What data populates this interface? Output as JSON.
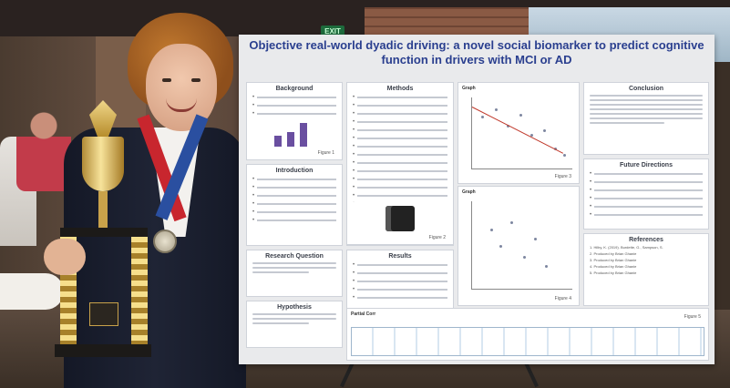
{
  "scene": {
    "exit_sign": "EXIT"
  },
  "poster": {
    "title": "Objective real-world dyadic driving: a novel social biomarker to predict cognitive function in drivers with MCI or AD",
    "sections": {
      "background": "Background",
      "methods": "Methods",
      "conclusion": "Conclusion",
      "introduction": "Introduction",
      "future_directions": "Future Directions",
      "references": "References",
      "research_question": "Research Question",
      "results": "Results",
      "hypothesis": "Hypothesis"
    },
    "figures": {
      "figure1": "Figure 1",
      "figure2": "Figure 2",
      "figure3": "Figure 3",
      "figure4": "Figure 4",
      "figure5": "Figure 5"
    },
    "graphs": {
      "graph_top_title": "Graph",
      "graph_bottom_title": "Graph",
      "bottom_table_title": "Partial Corr"
    },
    "references": [
      "1. Hilby, K. (2019). Burdette, G., Sampson, S.",
      "2. Produced by Brian Ghanie",
      "3. Produced by Brian Ghanie",
      "4. Produced by Brian Ghanie",
      "5. Produced by Brian Ghanie"
    ]
  },
  "colors": {
    "poster_title": "#2a3f8f",
    "bar": "#6a4fa0",
    "ribbon_red": "#c8262e",
    "ribbon_blue": "#2a4fa0",
    "trophy_gold": "#e9c96a"
  }
}
